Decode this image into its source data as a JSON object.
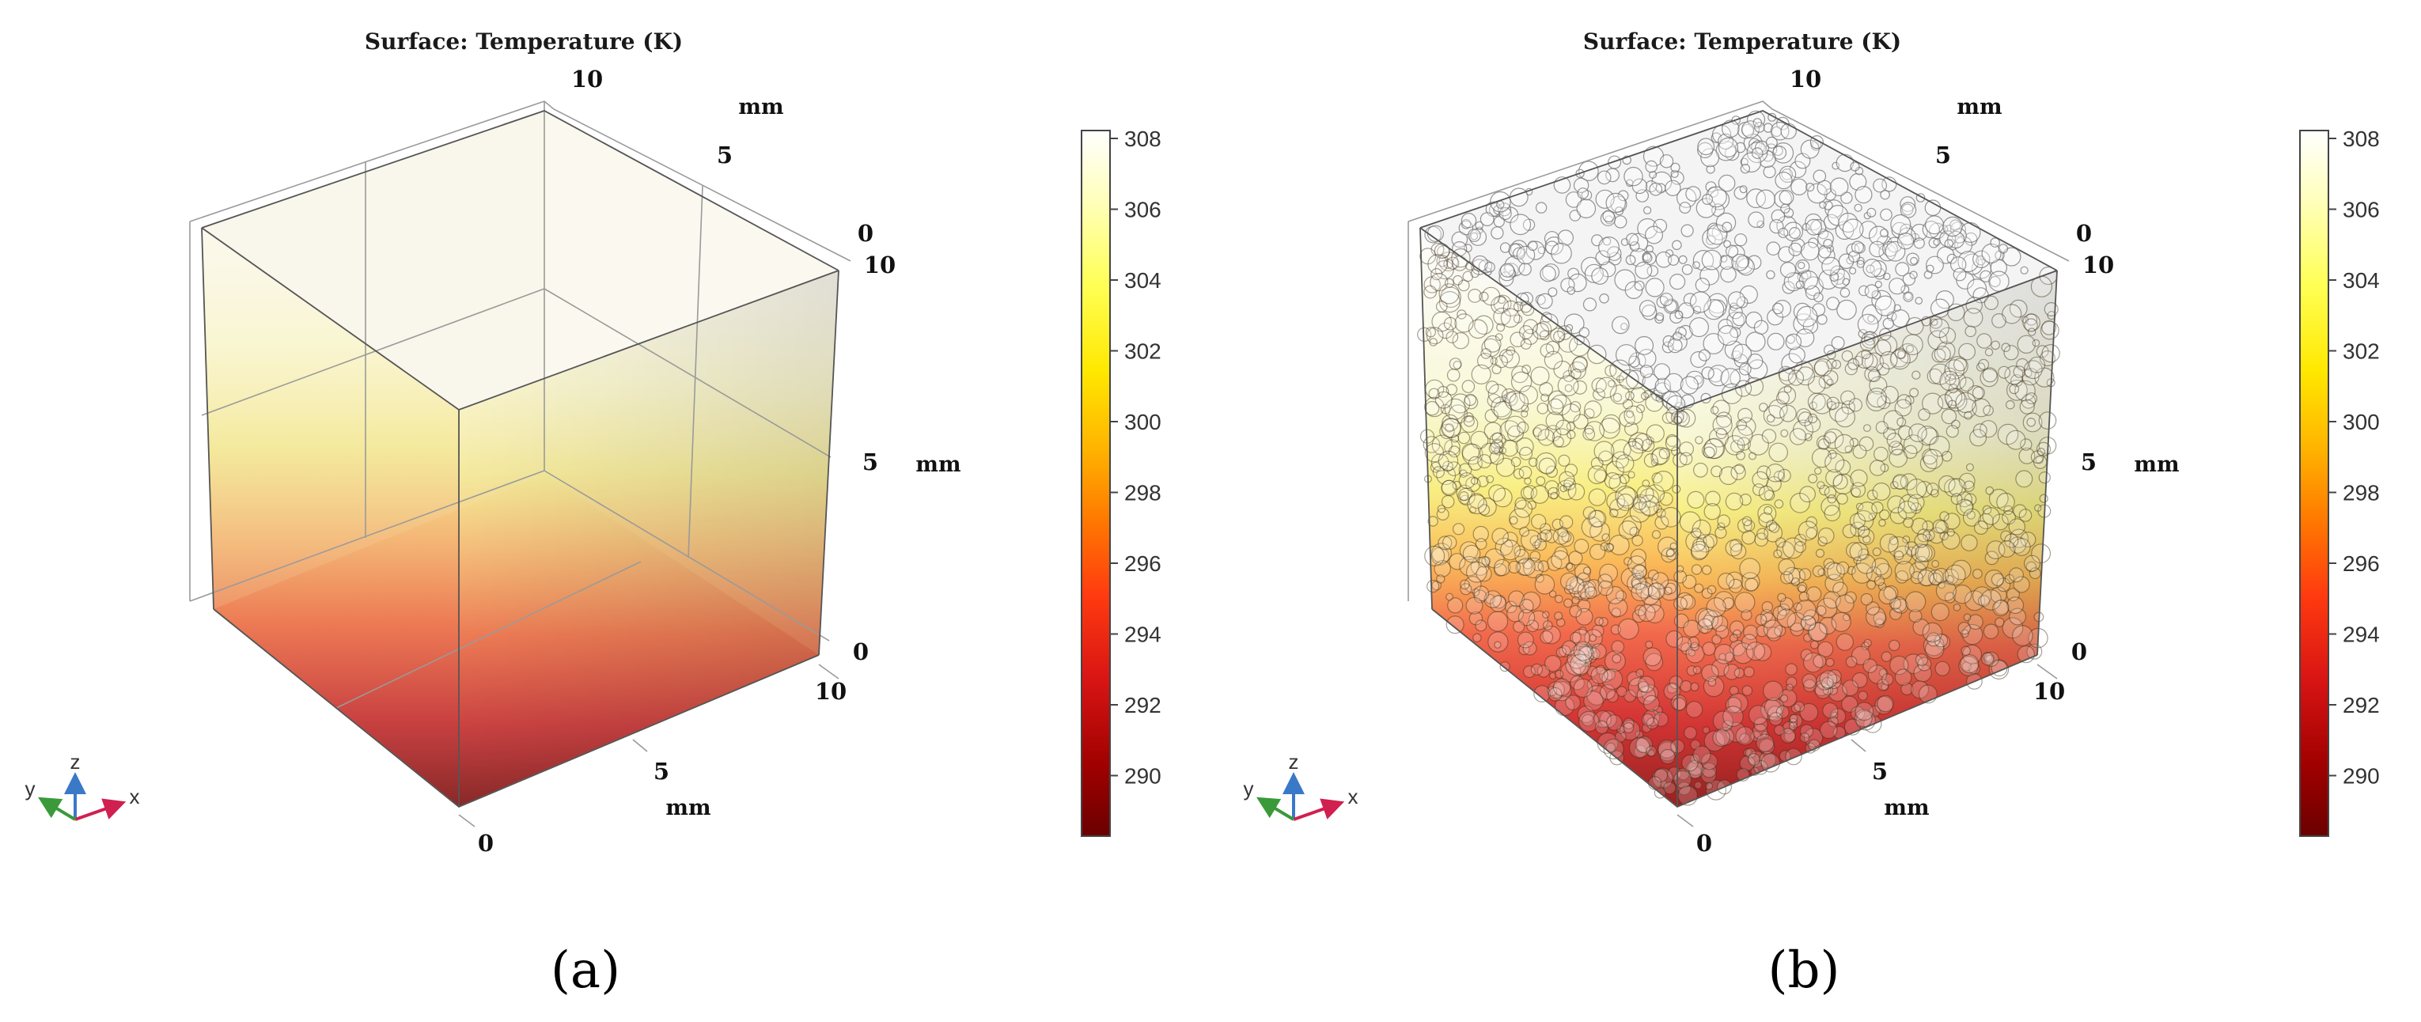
{
  "colors": {
    "scale": [
      "#6b0000",
      "#a00000",
      "#d81414",
      "#ff3a10",
      "#ff7a00",
      "#ffb400",
      "#ffe800",
      "#ffff55",
      "#ffffbb",
      "#ffffff"
    ]
  },
  "panels": [
    {
      "title": "Surface: Temperature (K)",
      "caption": "(a)",
      "axes": {
        "y": {
          "label": "mm",
          "ticks": [
            "10",
            "5",
            "0"
          ]
        },
        "z": {
          "label": "mm",
          "ticks": [
            "10",
            "5",
            "0"
          ]
        },
        "x": {
          "label": "mm",
          "ticks": [
            "0",
            "5",
            "10"
          ]
        }
      },
      "colorbar": {
        "ticks": [
          "308",
          "306",
          "304",
          "302",
          "300",
          "298",
          "296",
          "294",
          "292",
          "290"
        ]
      },
      "triad": {
        "x": "x",
        "y": "y",
        "z": "z"
      },
      "has_particles": false
    },
    {
      "title": "Surface: Temperature (K)",
      "caption": "(b)",
      "axes": {
        "y": {
          "label": "mm",
          "ticks": [
            "10",
            "5",
            "0"
          ]
        },
        "z": {
          "label": "mm",
          "ticks": [
            "10",
            "5",
            "0"
          ]
        },
        "x": {
          "label": "mm",
          "ticks": [
            "0",
            "5",
            "10"
          ]
        }
      },
      "colorbar": {
        "ticks": [
          "308",
          "306",
          "304",
          "302",
          "300",
          "298",
          "296",
          "294",
          "292",
          "290"
        ]
      },
      "triad": {
        "x": "x",
        "y": "y",
        "z": "z"
      },
      "has_particles": true
    }
  ]
}
